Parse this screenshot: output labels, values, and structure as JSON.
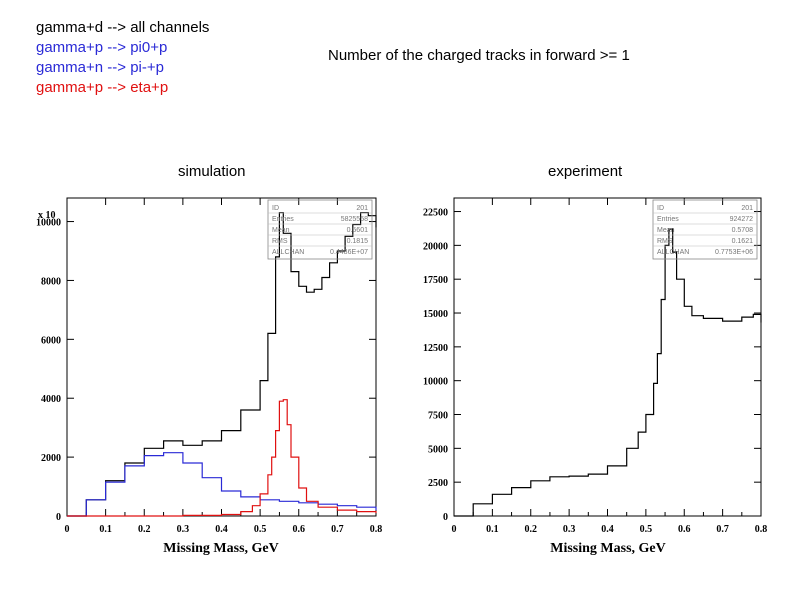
{
  "header": {
    "legend": [
      {
        "text": "gamma+d --> all channels",
        "color": "#000000"
      },
      {
        "text": "gamma+p --> pi0+p",
        "color": "#2a2ad6"
      },
      {
        "text": "gamma+n --> pi-+p",
        "color": "#2a2ad6"
      },
      {
        "text": "gamma+p --> eta+p",
        "color": "#e01010"
      }
    ],
    "note": "Number of the charged tracks in forward >= 1"
  },
  "chart_data": [
    {
      "type": "line",
      "title": "simulation",
      "xlabel": "Missing Mass, GeV",
      "ylabel": "",
      "y_multiplier_label": "x 10",
      "xlim": [
        0,
        0.8
      ],
      "ylim": [
        0,
        10800
      ],
      "xticks": [
        0,
        0.1,
        0.2,
        0.3,
        0.4,
        0.5,
        0.6,
        0.7,
        0.8
      ],
      "yticks": [
        0,
        2000,
        4000,
        6000,
        8000,
        10000
      ],
      "xtick_labels": [
        "0",
        "0.1",
        "0.2",
        "0.3",
        "0.4",
        "0.5",
        "0.6",
        "0.7",
        "0.8"
      ],
      "ytick_labels": [
        "0",
        "2000",
        "4000",
        "6000",
        "8000",
        "10000"
      ],
      "stats": [
        {
          "name": "ID",
          "value": "201"
        },
        {
          "name": "Entries",
          "value": "5825558"
        },
        {
          "name": "Mean",
          "value": "0.5601"
        },
        {
          "name": "RMS",
          "value": "0.1815"
        },
        {
          "name": "ALLCHAN",
          "value": "0.4486E+07"
        }
      ],
      "series": [
        {
          "color": "#000000",
          "x": [
            0,
            0.05,
            0.1,
            0.15,
            0.2,
            0.25,
            0.3,
            0.35,
            0.4,
            0.45,
            0.5,
            0.52,
            0.54,
            0.55,
            0.56,
            0.58,
            0.6,
            0.62,
            0.64,
            0.66,
            0.68,
            0.7,
            0.72,
            0.74,
            0.76,
            0.78,
            0.8
          ],
          "y": [
            0,
            550,
            1200,
            1800,
            2300,
            2550,
            2400,
            2550,
            2900,
            3600,
            4600,
            6200,
            8800,
            10300,
            9600,
            8300,
            7800,
            7600,
            7700,
            8100,
            8600,
            9000,
            9500,
            9900,
            10300,
            10200,
            9800
          ]
        },
        {
          "color": "#2a2ad6",
          "x": [
            0,
            0.05,
            0.1,
            0.15,
            0.2,
            0.25,
            0.3,
            0.35,
            0.4,
            0.45,
            0.5,
            0.55,
            0.6,
            0.65,
            0.7,
            0.75,
            0.8
          ],
          "y": [
            0,
            550,
            1150,
            1700,
            2050,
            2150,
            1800,
            1300,
            850,
            650,
            550,
            500,
            450,
            400,
            350,
            300,
            200
          ]
        },
        {
          "color": "#e01010",
          "x": [
            0,
            0.1,
            0.2,
            0.3,
            0.4,
            0.45,
            0.48,
            0.5,
            0.52,
            0.53,
            0.54,
            0.55,
            0.56,
            0.57,
            0.58,
            0.6,
            0.62,
            0.65,
            0.7,
            0.75,
            0.8
          ],
          "y": [
            0,
            0,
            0,
            20,
            50,
            150,
            350,
            750,
            1400,
            2000,
            2900,
            3900,
            3950,
            3100,
            2000,
            950,
            500,
            300,
            200,
            150,
            100
          ]
        }
      ]
    },
    {
      "type": "line",
      "title": "experiment",
      "xlabel": "Missing Mass, GeV",
      "ylabel": "",
      "xlim": [
        0,
        0.8
      ],
      "ylim": [
        0,
        23500
      ],
      "xticks": [
        0,
        0.1,
        0.2,
        0.3,
        0.4,
        0.5,
        0.6,
        0.7,
        0.8
      ],
      "yticks": [
        0,
        2500,
        5000,
        7500,
        10000,
        12500,
        15000,
        17500,
        20000,
        22500
      ],
      "xtick_labels": [
        "0",
        "0.1",
        "0.2",
        "0.3",
        "0.4",
        "0.5",
        "0.6",
        "0.7",
        "0.8"
      ],
      "ytick_labels": [
        "0",
        "2500",
        "5000",
        "7500",
        "10000",
        "12500",
        "15000",
        "17500",
        "20000",
        "22500"
      ],
      "stats": [
        {
          "name": "ID",
          "value": "201"
        },
        {
          "name": "Entries",
          "value": "924272"
        },
        {
          "name": "Mean",
          "value": "0.5708"
        },
        {
          "name": "RMS",
          "value": "0.1621"
        },
        {
          "name": "ALLCHAN",
          "value": "0.7753E+06"
        }
      ],
      "series": [
        {
          "color": "#000000",
          "x": [
            0,
            0.05,
            0.1,
            0.15,
            0.2,
            0.25,
            0.3,
            0.35,
            0.4,
            0.45,
            0.48,
            0.5,
            0.52,
            0.53,
            0.54,
            0.55,
            0.56,
            0.57,
            0.58,
            0.6,
            0.62,
            0.65,
            0.7,
            0.75,
            0.78,
            0.8
          ],
          "y": [
            0,
            900,
            1600,
            2100,
            2600,
            2900,
            2950,
            3100,
            3700,
            5000,
            6200,
            7500,
            9800,
            12000,
            16000,
            20000,
            21200,
            19500,
            17500,
            15500,
            14800,
            14600,
            14400,
            14700,
            14900,
            14300
          ]
        }
      ]
    }
  ]
}
